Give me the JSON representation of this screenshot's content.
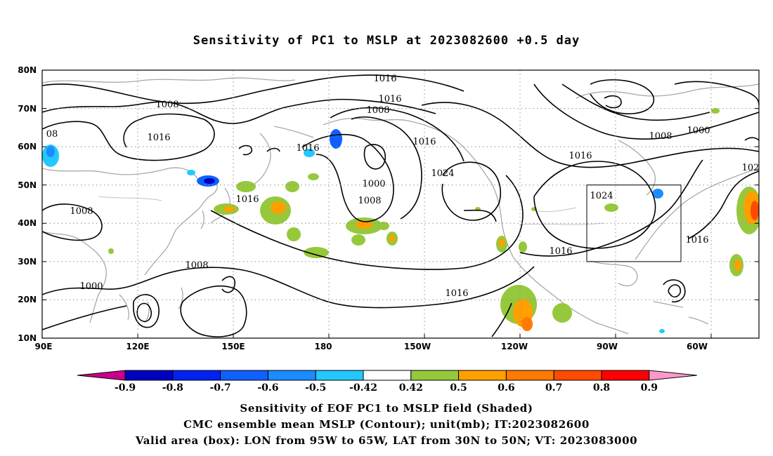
{
  "title": "Sensitivity of PC1 to MSLP at 2023082600 +0.5 day",
  "lat_labels": [
    "80N",
    "70N",
    "60N",
    "50N",
    "40N",
    "30N",
    "20N",
    "10N"
  ],
  "lon_labels": [
    "90E",
    "120E",
    "150E",
    "180",
    "150W",
    "120W",
    "90W",
    "60W"
  ],
  "isobar_labels": [
    "1016",
    "1016",
    "1008",
    "1008",
    "08",
    "1016",
    "1016",
    "1016",
    "1000",
    "1008",
    "1024",
    "1016",
    "1008",
    "1000",
    "1016",
    "1024",
    "1016",
    "1016",
    "1016",
    "1008",
    "1008",
    "1000",
    "102"
  ],
  "valid_box": {
    "lon": [
      "95W",
      "65W"
    ],
    "lat": [
      "30N",
      "50N"
    ]
  },
  "colorbar": {
    "labels": [
      "-0.9",
      "-0.8",
      "-0.7",
      "-0.6",
      "-0.5",
      "-0.42",
      "0.42",
      "0.5",
      "0.6",
      "0.7",
      "0.8",
      "0.9"
    ],
    "colors": [
      "#0000c0",
      "#0022f0",
      "#1060ff",
      "#1a8cff",
      "#22c8ff",
      "#ffffff",
      "#96c83c",
      "#ffa000",
      "#ff7a00",
      "#ff4a00",
      "#ff0000"
    ],
    "low_extension_color": "#c8008c",
    "high_extension_color": "#ff99cc"
  },
  "captions": [
    "Sensitivity of EOF PC1 to MSLP field (Shaded)",
    "CMC ensemble mean MSLP (Contour); unit(mb); IT:2023082600",
    "Valid area (box): LON from 95W to 65W, LAT from 30N to 50N; VT: 2023083000"
  ]
}
